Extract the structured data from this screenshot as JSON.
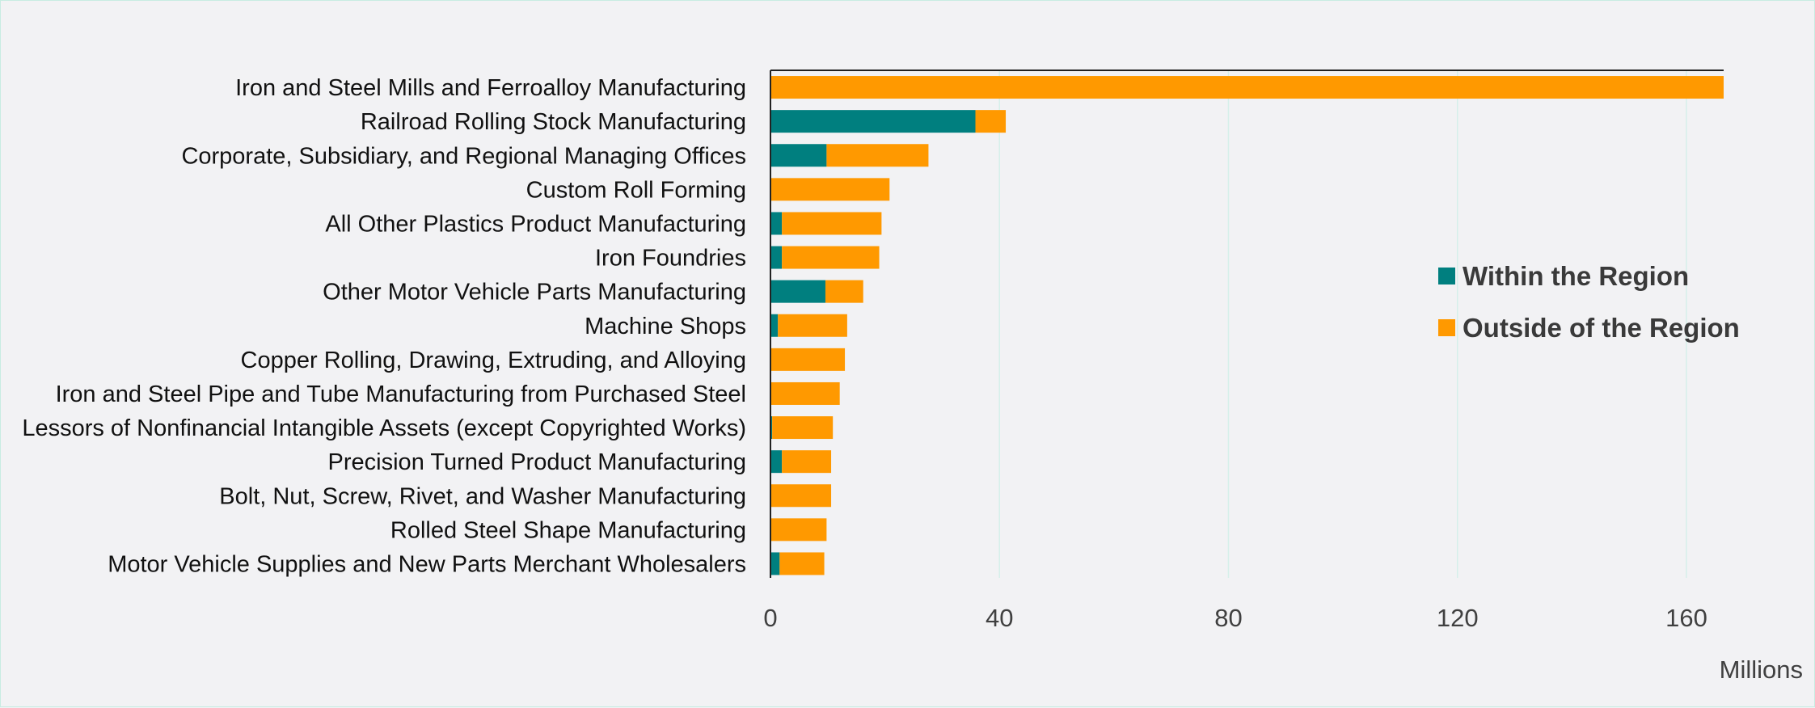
{
  "chart_data": {
    "type": "bar",
    "orientation": "horizontal",
    "stacked": true,
    "categories": [
      "Iron and Steel Mills and Ferroalloy Manufacturing",
      "Railroad Rolling Stock Manufacturing",
      "Corporate, Subsidiary, and Regional Managing Offices",
      "Custom Roll Forming",
      "All Other Plastics Product Manufacturing",
      "Iron Foundries",
      "Other Motor Vehicle Parts Manufacturing",
      "Machine Shops",
      "Copper Rolling, Drawing, Extruding, and Alloying",
      "Iron and Steel Pipe and Tube Manufacturing from Purchased Steel",
      "Lessors of Nonfinancial Intangible Assets (except Copyrighted Works)",
      "Precision Turned Product Manufacturing",
      "Bolt, Nut, Screw, Rivet, and Washer Manufacturing",
      "Rolled Steel Shape Manufacturing",
      "Motor Vehicle Supplies and New Parts Merchant Wholesalers"
    ],
    "series": [
      {
        "name": "Within the Region",
        "color": "#007f7f",
        "values": [
          0,
          35.8,
          9.8,
          0,
          2.0,
          2.0,
          9.6,
          1.3,
          0,
          0,
          0.3,
          2.0,
          0,
          0,
          1.6
        ]
      },
      {
        "name": "Outside of the Region",
        "color": "#ff9900",
        "values": [
          166.5,
          5.3,
          17.8,
          20.8,
          17.4,
          17.0,
          6.6,
          12.1,
          13.0,
          12.1,
          10.6,
          8.6,
          10.6,
          9.8,
          7.8
        ]
      }
    ],
    "xlim": [
      0,
      166.5
    ],
    "xticks": [
      0,
      40,
      80,
      120,
      160
    ],
    "xlabel": "Millions",
    "ylabel": "",
    "title": "",
    "grid": "vertical",
    "legend_position": "right"
  }
}
